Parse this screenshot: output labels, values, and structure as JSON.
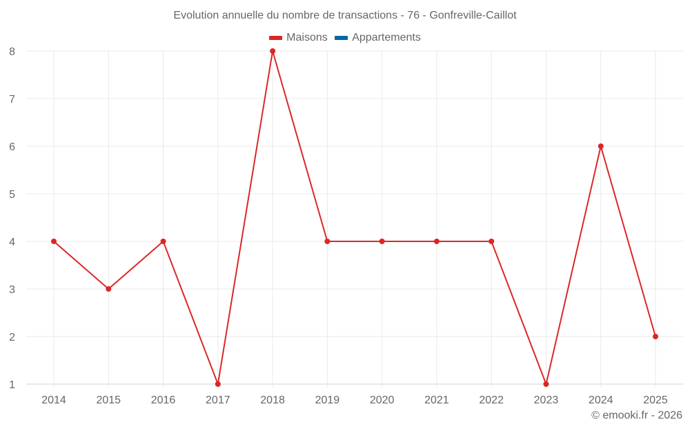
{
  "chart_data": {
    "type": "line",
    "title": "Evolution annuelle du nombre de transactions - 76 - Gonfreville-Caillot",
    "xlabel": "",
    "ylabel": "",
    "categories": [
      "2014",
      "2015",
      "2016",
      "2017",
      "2018",
      "2019",
      "2020",
      "2021",
      "2022",
      "2023",
      "2024",
      "2025"
    ],
    "series": [
      {
        "name": "Maisons",
        "color": "#dc2626",
        "values": [
          4,
          3,
          4,
          1,
          8,
          4,
          4,
          4,
          4,
          1,
          6,
          2
        ]
      },
      {
        "name": "Appartements",
        "color": "#0369a1",
        "values": []
      }
    ],
    "ylim": [
      1,
      8
    ],
    "yticks": [
      "1",
      "2",
      "3",
      "4",
      "5",
      "6",
      "7",
      "8"
    ],
    "grid": true,
    "legend_position": "top"
  },
  "legend": {
    "items": [
      {
        "label": "Maisons",
        "color": "#dc2626"
      },
      {
        "label": "Appartements",
        "color": "#0369a1"
      }
    ]
  },
  "credit": "© emooki.fr - 2026",
  "colors": {
    "grid": "#e8e8e8",
    "axis": "#d0d0d0",
    "text": "#666666"
  }
}
